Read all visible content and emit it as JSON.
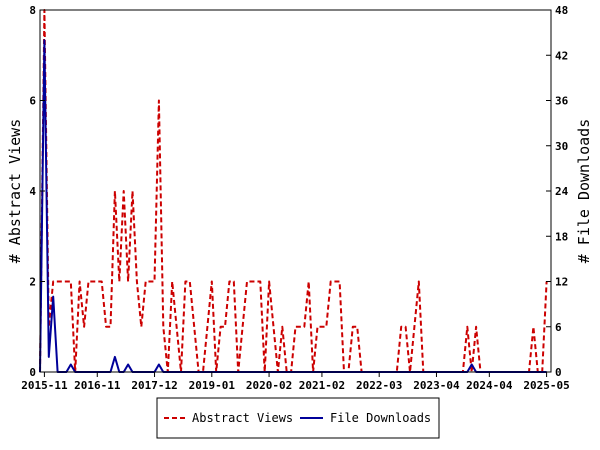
{
  "chart_data": {
    "type": "line",
    "title": "",
    "xlabel": "",
    "ylabel": "# Abstract Views",
    "y2label": "# File Downloads",
    "ylim": [
      0,
      8
    ],
    "y2lim": [
      0,
      48
    ],
    "yticks": [
      0,
      2,
      4,
      6,
      8
    ],
    "y2ticks": [
      0,
      6,
      12,
      18,
      24,
      30,
      36,
      42,
      48
    ],
    "xlim": [
      "2015-10",
      "2025-06"
    ],
    "xticks": [
      "2015-11",
      "2016-11",
      "2017-12",
      "2019-01",
      "2020-02",
      "2021-02",
      "2022-03",
      "2023-04",
      "2024-04",
      "2025-05"
    ],
    "legend_position": "bottom",
    "series": [
      {
        "name": "Abstract Views",
        "axis": "left",
        "color": "#cc0000",
        "style": "dashed",
        "points": [
          [
            "2015-10",
            0
          ],
          [
            "2015-11",
            8
          ],
          [
            "2015-12",
            1
          ],
          [
            "2016-01",
            2
          ],
          [
            "2016-02",
            2
          ],
          [
            "2016-03",
            2
          ],
          [
            "2016-04",
            2
          ],
          [
            "2016-05",
            2
          ],
          [
            "2016-06",
            0
          ],
          [
            "2016-07",
            2
          ],
          [
            "2016-08",
            1
          ],
          [
            "2016-09",
            2
          ],
          [
            "2016-10",
            2
          ],
          [
            "2016-11",
            2
          ],
          [
            "2016-12",
            2
          ],
          [
            "2017-01",
            1
          ],
          [
            "2017-02",
            1
          ],
          [
            "2017-03",
            4
          ],
          [
            "2017-04",
            2
          ],
          [
            "2017-05",
            4
          ],
          [
            "2017-06",
            2
          ],
          [
            "2017-07",
            4
          ],
          [
            "2017-08",
            2
          ],
          [
            "2017-09",
            1
          ],
          [
            "2017-10",
            2
          ],
          [
            "2017-11",
            2
          ],
          [
            "2017-12",
            2
          ],
          [
            "2018-01",
            6
          ],
          [
            "2018-02",
            1
          ],
          [
            "2018-03",
            0
          ],
          [
            "2018-04",
            2
          ],
          [
            "2018-05",
            1
          ],
          [
            "2018-06",
            0
          ],
          [
            "2018-07",
            2
          ],
          [
            "2018-08",
            2
          ],
          [
            "2018-09",
            1
          ],
          [
            "2018-10",
            0
          ],
          [
            "2018-11",
            0
          ],
          [
            "2018-12",
            1
          ],
          [
            "2019-01",
            2
          ],
          [
            "2019-02",
            0
          ],
          [
            "2019-03",
            1
          ],
          [
            "2019-04",
            1
          ],
          [
            "2019-05",
            2
          ],
          [
            "2019-06",
            2
          ],
          [
            "2019-07",
            0
          ],
          [
            "2019-08",
            1
          ],
          [
            "2019-09",
            2
          ],
          [
            "2019-10",
            2
          ],
          [
            "2019-11",
            2
          ],
          [
            "2019-12",
            2
          ],
          [
            "2020-01",
            0
          ],
          [
            "2020-02",
            2
          ],
          [
            "2020-03",
            1
          ],
          [
            "2020-04",
            0
          ],
          [
            "2020-05",
            1
          ],
          [
            "2020-06",
            0
          ],
          [
            "2020-07",
            0
          ],
          [
            "2020-08",
            1
          ],
          [
            "2020-09",
            1
          ],
          [
            "2020-10",
            1
          ],
          [
            "2020-11",
            2
          ],
          [
            "2020-12",
            0
          ],
          [
            "2021-01",
            1
          ],
          [
            "2021-02",
            1
          ],
          [
            "2021-03",
            1
          ],
          [
            "2021-04",
            2
          ],
          [
            "2021-05",
            2
          ],
          [
            "2021-06",
            2
          ],
          [
            "2021-07",
            0
          ],
          [
            "2021-08",
            0
          ],
          [
            "2021-09",
            1
          ],
          [
            "2021-10",
            1
          ],
          [
            "2021-11",
            0
          ],
          [
            "2021-12",
            0
          ],
          [
            "2022-01",
            0
          ],
          [
            "2022-02",
            0
          ],
          [
            "2022-03",
            0
          ],
          [
            "2022-04",
            0
          ],
          [
            "2022-05",
            0
          ],
          [
            "2022-06",
            0
          ],
          [
            "2022-07",
            0
          ],
          [
            "2022-08",
            1
          ],
          [
            "2022-09",
            1
          ],
          [
            "2022-10",
            0
          ],
          [
            "2022-11",
            1
          ],
          [
            "2022-12",
            2
          ],
          [
            "2023-01",
            0
          ],
          [
            "2023-02",
            0
          ],
          [
            "2023-03",
            0
          ],
          [
            "2023-04",
            0
          ],
          [
            "2023-05",
            0
          ],
          [
            "2023-06",
            0
          ],
          [
            "2023-07",
            0
          ],
          [
            "2023-08",
            0
          ],
          [
            "2023-09",
            0
          ],
          [
            "2023-10",
            0
          ],
          [
            "2023-11",
            1
          ],
          [
            "2023-12",
            0
          ],
          [
            "2024-01",
            1
          ],
          [
            "2024-02",
            0
          ],
          [
            "2024-03",
            0
          ],
          [
            "2024-04",
            0
          ],
          [
            "2024-05",
            0
          ],
          [
            "2024-06",
            0
          ],
          [
            "2024-07",
            0
          ],
          [
            "2024-08",
            0
          ],
          [
            "2024-09",
            0
          ],
          [
            "2024-10",
            0
          ],
          [
            "2024-11",
            0
          ],
          [
            "2024-12",
            0
          ],
          [
            "2025-01",
            0
          ],
          [
            "2025-02",
            1
          ],
          [
            "2025-03",
            0
          ],
          [
            "2025-04",
            0
          ],
          [
            "2025-05",
            2
          ]
        ]
      },
      {
        "name": "File Downloads",
        "axis": "right",
        "color": "#000099",
        "style": "solid",
        "points": [
          [
            "2015-10",
            0
          ],
          [
            "2015-11",
            44
          ],
          [
            "2015-12",
            2
          ],
          [
            "2016-01",
            10
          ],
          [
            "2016-02",
            0
          ],
          [
            "2016-03",
            0
          ],
          [
            "2016-04",
            0
          ],
          [
            "2016-05",
            1
          ],
          [
            "2016-06",
            0
          ],
          [
            "2016-07",
            0
          ],
          [
            "2016-08",
            0
          ],
          [
            "2016-09",
            0
          ],
          [
            "2016-10",
            0
          ],
          [
            "2016-11",
            0
          ],
          [
            "2016-12",
            0
          ],
          [
            "2017-01",
            0
          ],
          [
            "2017-02",
            0
          ],
          [
            "2017-03",
            2
          ],
          [
            "2017-04",
            0
          ],
          [
            "2017-05",
            0
          ],
          [
            "2017-06",
            1
          ],
          [
            "2017-07",
            0
          ],
          [
            "2017-08",
            0
          ],
          [
            "2017-09",
            0
          ],
          [
            "2017-10",
            0
          ],
          [
            "2017-11",
            0
          ],
          [
            "2017-12",
            0
          ],
          [
            "2018-01",
            1
          ],
          [
            "2018-02",
            0
          ],
          [
            "2018-03",
            0
          ],
          [
            "2018-04",
            0
          ],
          [
            "2018-05",
            0
          ],
          [
            "2018-06",
            0
          ],
          [
            "2018-07",
            0
          ],
          [
            "2018-08",
            0
          ],
          [
            "2018-09",
            0
          ],
          [
            "2018-10",
            0
          ],
          [
            "2018-11",
            0
          ],
          [
            "2018-12",
            0
          ],
          [
            "2019-01",
            0
          ],
          [
            "2019-02",
            0
          ],
          [
            "2019-03",
            0
          ],
          [
            "2019-04",
            0
          ],
          [
            "2019-05",
            0
          ],
          [
            "2019-06",
            0
          ],
          [
            "2019-07",
            0
          ],
          [
            "2019-08",
            0
          ],
          [
            "2019-09",
            0
          ],
          [
            "2019-10",
            0
          ],
          [
            "2019-11",
            0
          ],
          [
            "2019-12",
            0
          ],
          [
            "2020-01",
            0
          ],
          [
            "2020-02",
            0
          ],
          [
            "2020-03",
            0
          ],
          [
            "2020-04",
            0
          ],
          [
            "2020-05",
            0
          ],
          [
            "2020-06",
            0
          ],
          [
            "2020-07",
            0
          ],
          [
            "2020-08",
            0
          ],
          [
            "2020-09",
            0
          ],
          [
            "2020-10",
            0
          ],
          [
            "2020-11",
            0
          ],
          [
            "2020-12",
            0
          ],
          [
            "2021-01",
            0
          ],
          [
            "2021-02",
            0
          ],
          [
            "2021-03",
            0
          ],
          [
            "2021-04",
            0
          ],
          [
            "2021-05",
            0
          ],
          [
            "2021-06",
            0
          ],
          [
            "2021-07",
            0
          ],
          [
            "2021-08",
            0
          ],
          [
            "2021-09",
            0
          ],
          [
            "2021-10",
            0
          ],
          [
            "2021-11",
            0
          ],
          [
            "2021-12",
            0
          ],
          [
            "2022-01",
            0
          ],
          [
            "2022-02",
            0
          ],
          [
            "2022-03",
            0
          ],
          [
            "2022-04",
            0
          ],
          [
            "2022-05",
            0
          ],
          [
            "2022-06",
            0
          ],
          [
            "2022-07",
            0
          ],
          [
            "2022-08",
            0
          ],
          [
            "2022-09",
            0
          ],
          [
            "2022-10",
            0
          ],
          [
            "2022-11",
            0
          ],
          [
            "2022-12",
            0
          ],
          [
            "2023-01",
            0
          ],
          [
            "2023-02",
            0
          ],
          [
            "2023-03",
            0
          ],
          [
            "2023-04",
            0
          ],
          [
            "2023-05",
            0
          ],
          [
            "2023-06",
            0
          ],
          [
            "2023-07",
            0
          ],
          [
            "2023-08",
            0
          ],
          [
            "2023-09",
            0
          ],
          [
            "2023-10",
            0
          ],
          [
            "2023-11",
            0
          ],
          [
            "2023-12",
            1
          ],
          [
            "2024-01",
            0
          ],
          [
            "2024-02",
            0
          ],
          [
            "2024-03",
            0
          ],
          [
            "2024-04",
            0
          ],
          [
            "2024-05",
            0
          ],
          [
            "2024-06",
            0
          ],
          [
            "2024-07",
            0
          ],
          [
            "2024-08",
            0
          ],
          [
            "2024-09",
            0
          ],
          [
            "2024-10",
            0
          ],
          [
            "2024-11",
            0
          ],
          [
            "2024-12",
            0
          ],
          [
            "2025-01",
            0
          ],
          [
            "2025-02",
            0
          ],
          [
            "2025-03",
            0
          ],
          [
            "2025-04",
            0
          ],
          [
            "2025-05",
            0
          ]
        ]
      }
    ]
  }
}
